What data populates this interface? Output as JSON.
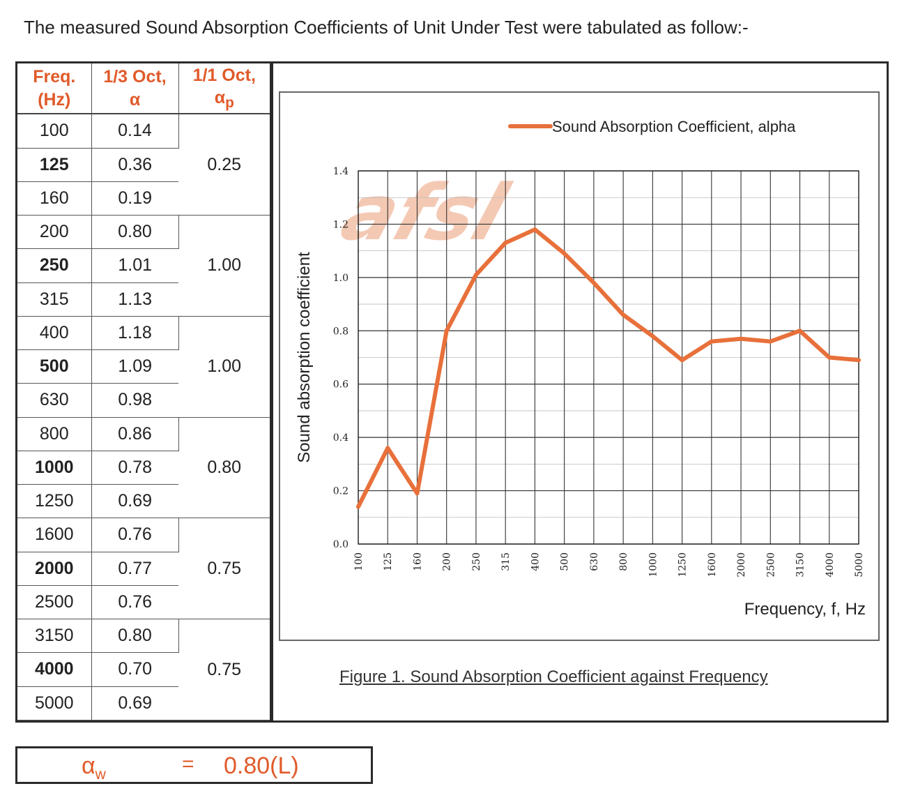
{
  "intro": "The measured Sound Absorption Coefficients of Unit Under Test were tabulated as follow:-",
  "table": {
    "headers": {
      "freq_line1": "Freq.",
      "freq_line2": "(Hz)",
      "third_line1": "1/3 Oct,",
      "third_line2": "α",
      "octave_line1": "1/1 Oct,",
      "octave_symbol": "α",
      "octave_sub": "p"
    },
    "rows": [
      {
        "freq": "100",
        "alpha": "0.14",
        "bold": false
      },
      {
        "freq": "125",
        "alpha": "0.36",
        "bold": true
      },
      {
        "freq": "160",
        "alpha": "0.19",
        "bold": false
      },
      {
        "freq": "200",
        "alpha": "0.80",
        "bold": false
      },
      {
        "freq": "250",
        "alpha": "1.01",
        "bold": true
      },
      {
        "freq": "315",
        "alpha": "1.13",
        "bold": false
      },
      {
        "freq": "400",
        "alpha": "1.18",
        "bold": false
      },
      {
        "freq": "500",
        "alpha": "1.09",
        "bold": true
      },
      {
        "freq": "630",
        "alpha": "0.98",
        "bold": false
      },
      {
        "freq": "800",
        "alpha": "0.86",
        "bold": false
      },
      {
        "freq": "1000",
        "alpha": "0.78",
        "bold": true
      },
      {
        "freq": "1250",
        "alpha": "0.69",
        "bold": false
      },
      {
        "freq": "1600",
        "alpha": "0.76",
        "bold": false
      },
      {
        "freq": "2000",
        "alpha": "0.77",
        "bold": true
      },
      {
        "freq": "2500",
        "alpha": "0.76",
        "bold": false
      },
      {
        "freq": "3150",
        "alpha": "0.80",
        "bold": false
      },
      {
        "freq": "4000",
        "alpha": "0.70",
        "bold": true
      },
      {
        "freq": "5000",
        "alpha": "0.69",
        "bold": false
      }
    ],
    "octave_values": [
      "0.25",
      "1.00",
      "1.00",
      "0.80",
      "0.75",
      "0.75"
    ]
  },
  "chart_data": {
    "type": "line",
    "categories": [
      "100",
      "125",
      "160",
      "200",
      "250",
      "315",
      "400",
      "500",
      "630",
      "800",
      "1000",
      "1250",
      "1600",
      "2000",
      "2500",
      "3150",
      "4000",
      "5000"
    ],
    "series": [
      {
        "name": "Sound Absorption Coefficient, alpha",
        "values": [
          0.14,
          0.36,
          0.19,
          0.8,
          1.01,
          1.13,
          1.18,
          1.09,
          0.98,
          0.86,
          0.78,
          0.69,
          0.76,
          0.77,
          0.76,
          0.8,
          0.7,
          0.69
        ],
        "color": "#e8703a"
      }
    ],
    "title": "",
    "xlabel": "Frequency, f, Hz",
    "ylabel": "Sound absorption coefficient",
    "ylim": [
      0,
      1.4
    ],
    "yticks": [
      "0.0",
      "0.2",
      "0.4",
      "0.6",
      "0.8",
      "1.0",
      "1.2",
      "1.4"
    ],
    "grid": true,
    "legend_position": "top-right",
    "watermark": "afsl"
  },
  "caption": "Figure 1. Sound Absorption Coefficient against Frequency",
  "weighted": {
    "symbol": "α",
    "sub": "w",
    "eq": "=",
    "value": "0.80(L)"
  },
  "colors": {
    "accent": "#e05a2a",
    "line": "#e8703a",
    "border": "#2a2a2a"
  }
}
